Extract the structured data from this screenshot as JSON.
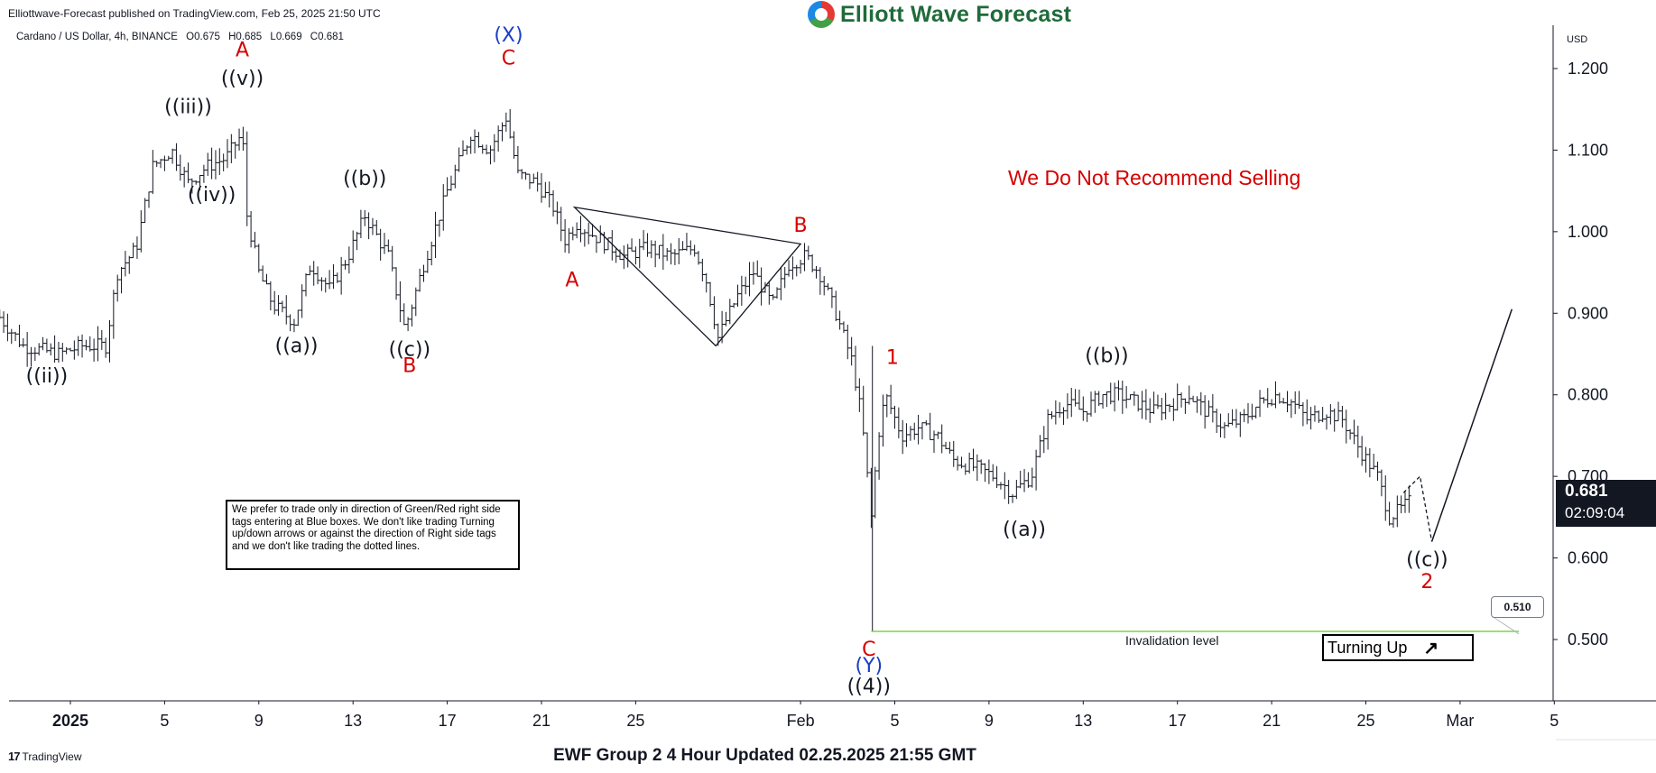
{
  "header": {
    "published": "Elliottwave-Forecast published on TradingView.com, Feb 25, 2025 21:50 UTC",
    "logo_text": "Elliott Wave Forecast",
    "symbol": "Cardano / US Dollar, 4h, BINANCE",
    "ohlc": {
      "o_label": "O",
      "o": "0.675",
      "h_label": "H",
      "h": "0.685",
      "l_label": "L",
      "l": "0.669",
      "c_label": "C",
      "c": "0.681"
    },
    "currency": "USD"
  },
  "footer": {
    "tradingview": "TradingView",
    "title": "EWF Group 2 4 Hour Updated 02.25.2025 21:55 GMT"
  },
  "annotations": {
    "recommendation": "We Do Not Recommend Selling",
    "note": "We prefer to trade only in direction of Green/Red right side tags entering at Blue boxes. We don't like trading Turning up/down arrows or against the direction of Right side tags and we don't like trading the dotted lines.",
    "invalidation_label": "Invalidation level",
    "turning_label": "Turning Up",
    "invalidation_price": "0.510",
    "current_price": "0.681",
    "countdown": "02:09:04"
  },
  "colors": {
    "wave_red": "#d50000",
    "wave_blue": "#1a3fc4",
    "wave_black": "#131722",
    "invalidation_line": "#7cd34a",
    "bars": "#131722"
  },
  "chart_data": {
    "type": "ohlc",
    "instrument": "Cardano / US Dollar",
    "timeframe": "4h",
    "exchange": "BINANCE",
    "ylim": [
      0.43,
      1.27
    ],
    "y_ticks": [
      0.5,
      0.6,
      0.7,
      0.8,
      0.9,
      1.0,
      1.1,
      1.2
    ],
    "y_tick_labels": [
      "0.500",
      "0.600",
      "0.700",
      "0.800",
      "0.900",
      "1.000",
      "1.100",
      "1.200"
    ],
    "x_ticks": [
      {
        "label": "2025",
        "day": 1
      },
      {
        "label": "5",
        "day": 5
      },
      {
        "label": "9",
        "day": 9
      },
      {
        "label": "13",
        "day": 13
      },
      {
        "label": "17",
        "day": 17
      },
      {
        "label": "21",
        "day": 21
      },
      {
        "label": "25",
        "day": 25
      },
      {
        "label": "Feb",
        "day": 32
      },
      {
        "label": "5",
        "day": 36
      },
      {
        "label": "9",
        "day": 40
      },
      {
        "label": "13",
        "day": 44
      },
      {
        "label": "17",
        "day": 48
      },
      {
        "label": "21",
        "day": 52
      },
      {
        "label": "25",
        "day": 56
      },
      {
        "label": "Mar",
        "day": 60
      },
      {
        "label": "5",
        "day": 64
      }
    ],
    "path": [
      [
        -2.0,
        0.895
      ],
      [
        -1.0,
        0.86
      ],
      [
        0.5,
        0.85
      ],
      [
        1.5,
        0.86
      ],
      [
        2.5,
        0.86
      ],
      [
        3.0,
        0.95
      ],
      [
        3.8,
        0.98
      ],
      [
        4.5,
        1.08
      ],
      [
        5.3,
        1.1
      ],
      [
        6.0,
        1.06
      ],
      [
        6.8,
        1.08
      ],
      [
        7.6,
        1.09
      ],
      [
        8.3,
        1.12
      ],
      [
        8.5,
        1.02
      ],
      [
        9.0,
        0.95
      ],
      [
        9.6,
        0.91
      ],
      [
        10.5,
        0.89
      ],
      [
        11.2,
        0.96
      ],
      [
        12.0,
        0.93
      ],
      [
        12.8,
        0.97
      ],
      [
        13.5,
        1.02
      ],
      [
        14.5,
        0.97
      ],
      [
        15.2,
        0.88
      ],
      [
        16.0,
        0.96
      ],
      [
        17.0,
        1.05
      ],
      [
        18.0,
        1.12
      ],
      [
        18.8,
        1.1
      ],
      [
        19.5,
        1.14
      ],
      [
        20.0,
        1.07
      ],
      [
        20.8,
        1.06
      ],
      [
        21.5,
        1.03
      ],
      [
        22.0,
        0.99
      ],
      [
        22.5,
        1.01
      ],
      [
        23.5,
        0.99
      ],
      [
        24.5,
        0.97
      ],
      [
        25.5,
        0.98
      ],
      [
        26.5,
        0.97
      ],
      [
        27.5,
        0.98
      ],
      [
        28.0,
        0.94
      ],
      [
        28.5,
        0.87
      ],
      [
        29.3,
        0.92
      ],
      [
        30.0,
        0.95
      ],
      [
        30.8,
        0.91
      ],
      [
        31.5,
        0.96
      ],
      [
        32.2,
        0.97
      ],
      [
        32.8,
        0.95
      ],
      [
        33.5,
        0.9
      ],
      [
        34.2,
        0.84
      ],
      [
        34.6,
        0.77
      ],
      [
        35.0,
        0.65
      ],
      [
        35.3,
        0.75
      ],
      [
        35.6,
        0.8
      ],
      [
        36.3,
        0.75
      ],
      [
        37.0,
        0.76
      ],
      [
        37.8,
        0.75
      ],
      [
        38.5,
        0.72
      ],
      [
        39.5,
        0.71
      ],
      [
        40.2,
        0.7
      ],
      [
        41.0,
        0.68
      ],
      [
        41.8,
        0.7
      ],
      [
        42.5,
        0.77
      ],
      [
        43.2,
        0.79
      ],
      [
        44.0,
        0.78
      ],
      [
        44.8,
        0.8
      ],
      [
        45.5,
        0.8
      ],
      [
        46.3,
        0.79
      ],
      [
        47.0,
        0.78
      ],
      [
        47.8,
        0.79
      ],
      [
        48.5,
        0.8
      ],
      [
        49.2,
        0.78
      ],
      [
        50.0,
        0.76
      ],
      [
        50.8,
        0.77
      ],
      [
        51.5,
        0.79
      ],
      [
        52.2,
        0.8
      ],
      [
        52.9,
        0.79
      ],
      [
        53.5,
        0.77
      ],
      [
        54.3,
        0.78
      ],
      [
        55.0,
        0.77
      ],
      [
        55.8,
        0.73
      ],
      [
        56.5,
        0.7
      ],
      [
        57.0,
        0.65
      ],
      [
        57.5,
        0.66
      ],
      [
        57.9,
        0.67
      ]
    ],
    "drawings": {
      "triangle": [
        [
          22.4,
          1.03
        ],
        [
          32.0,
          0.985
        ],
        [
          28.4,
          0.86
        ]
      ],
      "projection_dashed": [
        [
          57.6,
          0.68
        ],
        [
          58.3,
          0.7
        ],
        [
          58.8,
          0.62
        ]
      ],
      "projection_solid": [
        [
          58.8,
          0.62
        ],
        [
          62.2,
          0.905
        ]
      ],
      "invalidation": {
        "from": 35.0,
        "to": 62.5,
        "price": 0.51
      }
    },
    "wave_labels": [
      {
        "text": "((ii))",
        "day": 0.0,
        "price": 0.815,
        "color": "black"
      },
      {
        "text": "((iii))",
        "day": 6.0,
        "price": 1.145,
        "color": "black"
      },
      {
        "text": "((iv))",
        "day": 7.0,
        "price": 1.0375,
        "color": "black"
      },
      {
        "text": "((v))",
        "day": 8.3,
        "price": 1.18,
        "color": "black"
      },
      {
        "text": "A",
        "day": 8.3,
        "price": 1.215,
        "color": "red"
      },
      {
        "text": "((a))",
        "day": 10.6,
        "price": 0.852,
        "color": "black"
      },
      {
        "text": "((b))",
        "day": 13.5,
        "price": 1.0575,
        "color": "black"
      },
      {
        "text": "((c))",
        "day": 15.4,
        "price": 0.848,
        "color": "black"
      },
      {
        "text": "B",
        "day": 15.4,
        "price": 0.828,
        "color": "red"
      },
      {
        "text": "(X)",
        "day": 19.6,
        "price": 1.233,
        "color": "blue"
      },
      {
        "text": "C",
        "day": 19.6,
        "price": 1.205,
        "color": "red"
      },
      {
        "text": "A",
        "day": 22.3,
        "price": 0.933,
        "color": "red"
      },
      {
        "text": "B",
        "day": 32.0,
        "price": 1.0,
        "color": "red"
      },
      {
        "text": "1",
        "day": 35.9,
        "price": 0.838,
        "color": "red"
      },
      {
        "text": "C",
        "day": 34.9,
        "price": 0.48,
        "color": "red"
      },
      {
        "text": "(Y)",
        "day": 34.9,
        "price": 0.46,
        "color": "blue"
      },
      {
        "text": "((4))",
        "day": 34.9,
        "price": 0.435,
        "color": "black"
      },
      {
        "text": "((a))",
        "day": 41.5,
        "price": 0.627,
        "color": "black"
      },
      {
        "text": "((b))",
        "day": 45.0,
        "price": 0.84,
        "color": "black"
      },
      {
        "text": "((c))",
        "day": 58.6,
        "price": 0.59,
        "color": "black"
      },
      {
        "text": "2",
        "day": 58.6,
        "price": 0.563,
        "color": "red"
      }
    ]
  }
}
